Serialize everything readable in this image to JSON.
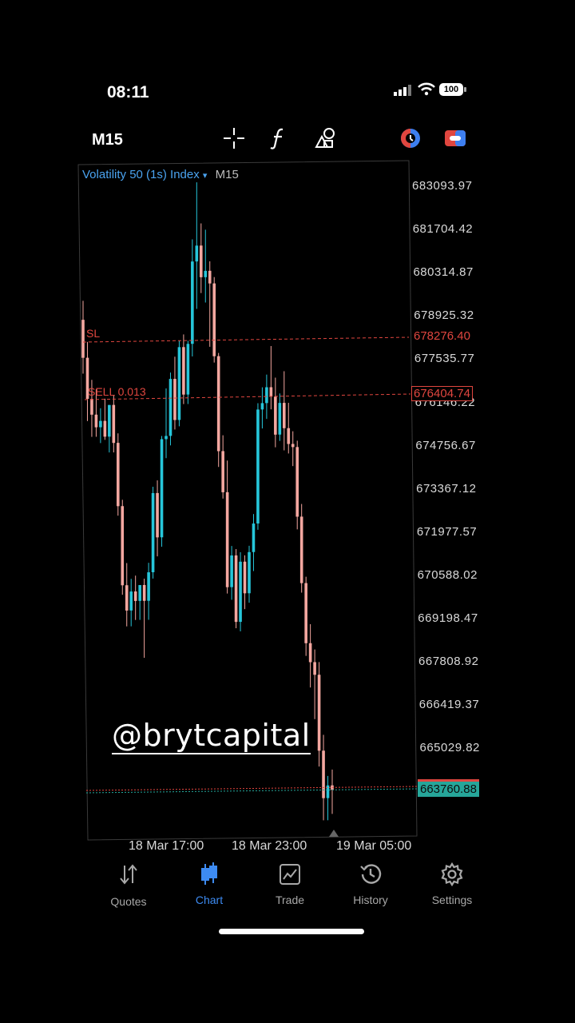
{
  "status": {
    "time": "08:11",
    "battery": "100"
  },
  "toolbar": {
    "timeframe": "M15",
    "icons": [
      "crosshair-icon",
      "function-icon",
      "objects-icon",
      "one-click-trading-icon",
      "trade-toggle-icon"
    ]
  },
  "chart": {
    "symbol": "Volatility 50 (1s) Index",
    "dropdown_glyph": "▾",
    "timeframe": "M15",
    "price_axis": [
      "683093.97",
      "681704.42",
      "680314.87",
      "678925.32",
      "677535.77",
      "676146.22",
      "674756.67",
      "673367.12",
      "671977.57",
      "670588.02",
      "669198.47",
      "667808.92",
      "666419.37",
      "665029.82"
    ],
    "sl": {
      "label": "SL",
      "price": "678276.40",
      "color": "#e0463f"
    },
    "sell": {
      "label": "SELL 0.013",
      "price": "676404.74",
      "color": "#e0463f"
    },
    "current": {
      "price": "663760.88",
      "color": "#26a69a"
    },
    "time_axis": [
      "18 Mar 17:00",
      "18 Mar 23:00",
      "19 Mar 05:00"
    ],
    "watermark": "@brytcapital",
    "colors": {
      "up": "#26c6da",
      "down": "#f4a7a0",
      "frame": "#333333"
    }
  },
  "chart_data": {
    "type": "candlestick",
    "candles": [
      {
        "o": 678700,
        "h": 679300,
        "l": 677000,
        "c": 677500
      },
      {
        "o": 677500,
        "h": 678000,
        "l": 675500,
        "c": 676200
      },
      {
        "o": 676200,
        "h": 676800,
        "l": 675000,
        "c": 675700
      },
      {
        "o": 675700,
        "h": 676500,
        "l": 675000,
        "c": 675300
      },
      {
        "o": 675300,
        "h": 675900,
        "l": 674800,
        "c": 675500
      },
      {
        "o": 675500,
        "h": 676200,
        "l": 674900,
        "c": 675000
      },
      {
        "o": 675000,
        "h": 676000,
        "l": 674500,
        "c": 676000
      },
      {
        "o": 676000,
        "h": 676300,
        "l": 674500,
        "c": 674800
      },
      {
        "o": 674800,
        "h": 675100,
        "l": 672500,
        "c": 672800
      },
      {
        "o": 672800,
        "h": 673000,
        "l": 670000,
        "c": 670300
      },
      {
        "o": 670300,
        "h": 671000,
        "l": 669000,
        "c": 669500
      },
      {
        "o": 669500,
        "h": 670500,
        "l": 669000,
        "c": 670100
      },
      {
        "o": 670100,
        "h": 670600,
        "l": 669200,
        "c": 669800
      },
      {
        "o": 669800,
        "h": 670300,
        "l": 669200,
        "c": 670300
      },
      {
        "o": 670300,
        "h": 670500,
        "l": 668000,
        "c": 669800
      },
      {
        "o": 669800,
        "h": 671000,
        "l": 669200,
        "c": 670700
      },
      {
        "o": 670700,
        "h": 673400,
        "l": 670500,
        "c": 673200
      },
      {
        "o": 673200,
        "h": 673600,
        "l": 671200,
        "c": 671800
      },
      {
        "o": 671800,
        "h": 675000,
        "l": 671500,
        "c": 674900
      },
      {
        "o": 674900,
        "h": 676500,
        "l": 674300,
        "c": 675000
      },
      {
        "o": 675000,
        "h": 677000,
        "l": 674700,
        "c": 676800
      },
      {
        "o": 676800,
        "h": 677500,
        "l": 675200,
        "c": 675500
      },
      {
        "o": 675500,
        "h": 678000,
        "l": 675300,
        "c": 677800
      },
      {
        "o": 677800,
        "h": 678200,
        "l": 676000,
        "c": 676300
      },
      {
        "o": 676300,
        "h": 678000,
        "l": 676000,
        "c": 677900
      },
      {
        "o": 677900,
        "h": 681200,
        "l": 677500,
        "c": 680500
      },
      {
        "o": 680500,
        "h": 683000,
        "l": 679000,
        "c": 681000
      },
      {
        "o": 681000,
        "h": 681700,
        "l": 679500,
        "c": 680000
      },
      {
        "o": 680000,
        "h": 681500,
        "l": 679200,
        "c": 680200
      },
      {
        "o": 680200,
        "h": 680500,
        "l": 677800,
        "c": 679800
      },
      {
        "o": 679800,
        "h": 680000,
        "l": 677300,
        "c": 677500
      },
      {
        "o": 677500,
        "h": 677600,
        "l": 674000,
        "c": 674500
      },
      {
        "o": 674500,
        "h": 675000,
        "l": 673000,
        "c": 673200
      },
      {
        "o": 673200,
        "h": 674200,
        "l": 670000,
        "c": 670200
      },
      {
        "o": 670200,
        "h": 671500,
        "l": 669800,
        "c": 671200
      },
      {
        "o": 671200,
        "h": 671400,
        "l": 668900,
        "c": 669100
      },
      {
        "o": 669100,
        "h": 671300,
        "l": 668800,
        "c": 671000
      },
      {
        "o": 671000,
        "h": 671200,
        "l": 669500,
        "c": 670000
      },
      {
        "o": 670000,
        "h": 671500,
        "l": 669700,
        "c": 671300
      },
      {
        "o": 671300,
        "h": 672500,
        "l": 670700,
        "c": 672200
      },
      {
        "o": 672200,
        "h": 676000,
        "l": 672000,
        "c": 675800
      },
      {
        "o": 675800,
        "h": 676500,
        "l": 675200,
        "c": 676000
      },
      {
        "o": 676000,
        "h": 676900,
        "l": 675500,
        "c": 676500
      },
      {
        "o": 676500,
        "h": 677800,
        "l": 675800,
        "c": 676200
      },
      {
        "o": 676200,
        "h": 676800,
        "l": 674600,
        "c": 675000
      },
      {
        "o": 675000,
        "h": 676300,
        "l": 674800,
        "c": 676000
      },
      {
        "o": 676000,
        "h": 677000,
        "l": 674500,
        "c": 675200
      },
      {
        "o": 675200,
        "h": 676000,
        "l": 674400,
        "c": 674700
      },
      {
        "o": 674700,
        "h": 675100,
        "l": 674000,
        "c": 674600
      },
      {
        "o": 674600,
        "h": 674800,
        "l": 672000,
        "c": 672400
      },
      {
        "o": 672400,
        "h": 672800,
        "l": 670000,
        "c": 670300
      },
      {
        "o": 670300,
        "h": 670500,
        "l": 668000,
        "c": 668400
      },
      {
        "o": 668400,
        "h": 669000,
        "l": 667000,
        "c": 667800
      },
      {
        "o": 667800,
        "h": 668200,
        "l": 666000,
        "c": 667400
      },
      {
        "o": 667400,
        "h": 667800,
        "l": 664500,
        "c": 665000
      },
      {
        "o": 665000,
        "h": 665500,
        "l": 662800,
        "c": 663500
      },
      {
        "o": 663500,
        "h": 664200,
        "l": 662800,
        "c": 663900
      },
      {
        "o": 663900,
        "h": 664400,
        "l": 663000,
        "c": 663760
      }
    ],
    "ylim": [
      662800,
      683500
    ],
    "x_ticks": [
      "18 Mar 17:00",
      "18 Mar 23:00",
      "19 Mar 05:00"
    ]
  },
  "nav": {
    "items": [
      {
        "label": "Quotes",
        "icon": "quotes-icon"
      },
      {
        "label": "Chart",
        "icon": "chart-icon"
      },
      {
        "label": "Trade",
        "icon": "trade-icon"
      },
      {
        "label": "History",
        "icon": "history-icon"
      },
      {
        "label": "Settings",
        "icon": "settings-icon"
      }
    ],
    "active": "Chart",
    "active_color": "#3d8bf2"
  }
}
